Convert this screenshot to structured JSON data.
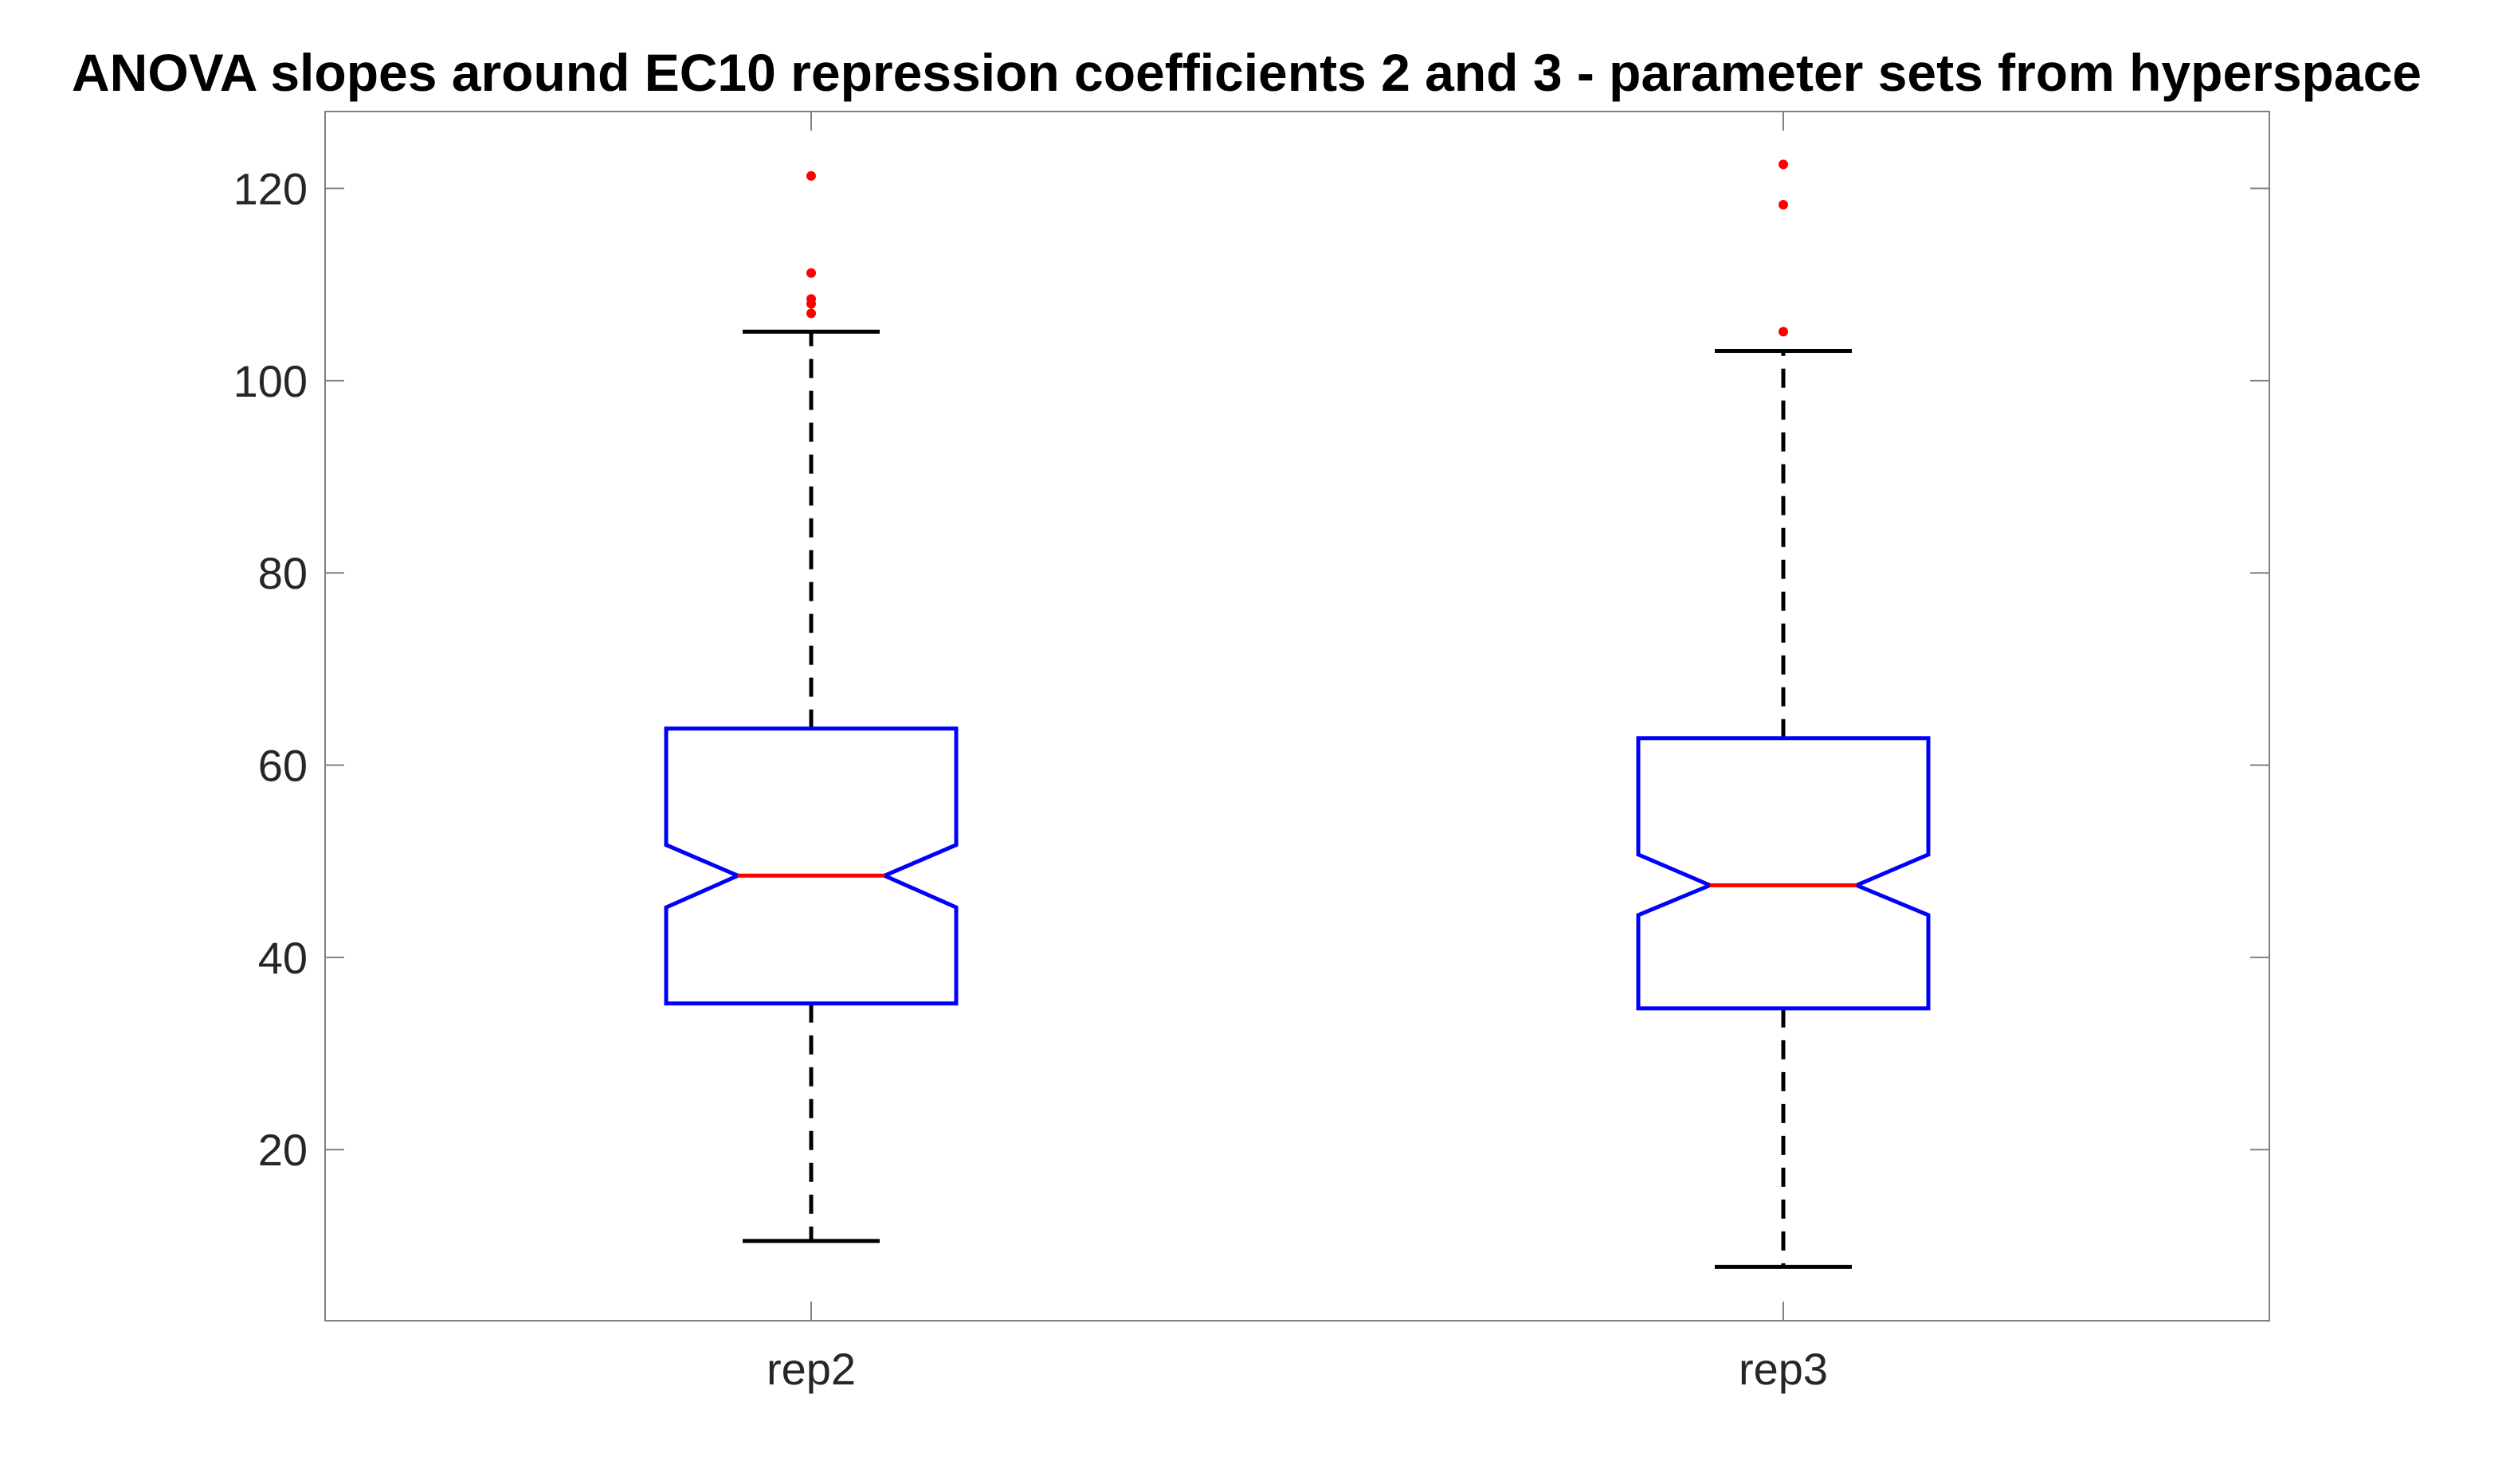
{
  "chart_data": {
    "type": "boxplot",
    "title": "ANOVA slopes around EC10 repression coefficients 2 and 3 - parameter sets from hyperspace",
    "xlabel": "",
    "ylabel": "",
    "categories": [
      "rep2",
      "rep3"
    ],
    "ylim": [
      2.2,
      128
    ],
    "yticks": [
      20,
      40,
      60,
      80,
      100,
      120
    ],
    "notched": true,
    "grid": false,
    "boxes": [
      {
        "category": "rep2",
        "whisker_low": 10.5,
        "q1": 35.2,
        "median": 48.5,
        "q3": 63.8,
        "whisker_high": 105.1,
        "notch_low": 45.2,
        "notch_high": 51.7,
        "outliers": [
          107,
          108,
          108.5,
          111.2,
          121.3
        ]
      },
      {
        "category": "rep3",
        "whisker_low": 7.8,
        "q1": 34.7,
        "median": 47.5,
        "q3": 62.8,
        "whisker_high": 103.1,
        "notch_low": 44.4,
        "notch_high": 50.7,
        "outliers": [
          105.1,
          118.3,
          122.5
        ]
      }
    ],
    "colors": {
      "box": "#0000ff",
      "median": "#ff0000",
      "whisker": "#000000",
      "outlier": "#ff0000",
      "axes": "#808080",
      "text": "#262626"
    }
  }
}
